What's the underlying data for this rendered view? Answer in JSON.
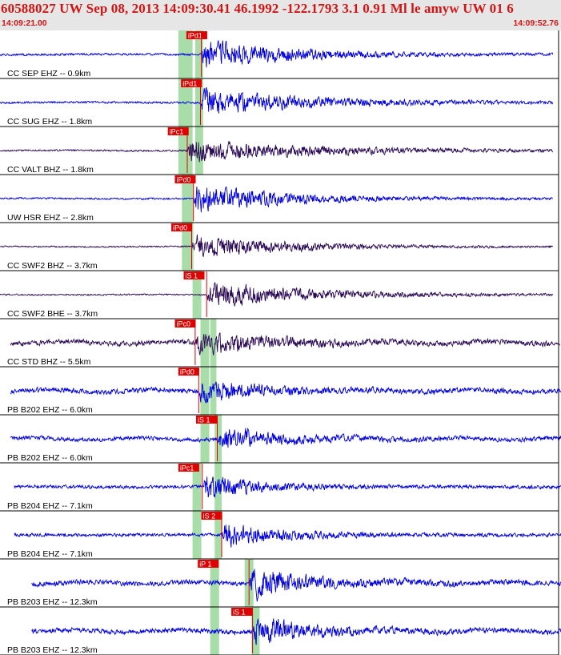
{
  "header": {
    "title": "60588027 UW Sep 08, 2013 14:09:30.41   46.1992 -122.1793  3.1 0.91 Ml le amyw UW 01    6",
    "start_time": "14:09:21.00",
    "end_time": "14:09:52.76"
  },
  "colors": {
    "header_bg": "#e6e6e6",
    "header_text": "#d21414",
    "trace_blue": "#0000e0",
    "trace_dark": "#2a0a55",
    "pick_red": "#e00000",
    "window_green": "#a8dca8",
    "divider": "#000000"
  },
  "chart_data": {
    "type": "line",
    "x_unit": "seconds",
    "x_range": [
      0,
      31.76
    ],
    "traces": [
      {
        "label": "CC SEP EHZ -- 0.9km",
        "color": "blue",
        "pick": "iPd1",
        "pick_time": 10.55,
        "onset": 11.4,
        "trace_start": 0.0,
        "trace_end": 31.3,
        "windows": [
          [
            10.1,
            10.9
          ],
          [
            11.05,
            11.5
          ]
        ],
        "noise": 0.06,
        "peak": 0.78,
        "decay": 5,
        "seed": 1
      },
      {
        "label": "CC SUG EHZ -- 1.8km",
        "color": "blue",
        "pick": "iPd1",
        "pick_time": 10.25,
        "onset": 11.35,
        "trace_start": 0.0,
        "trace_end": 31.3,
        "windows": [
          [
            10.1,
            10.9
          ],
          [
            11.05,
            11.5
          ]
        ],
        "noise": 0.06,
        "peak": 0.72,
        "decay": 6,
        "seed": 2
      },
      {
        "label": "CC VALT BHZ -- 1.8km",
        "color": "dark",
        "pick": "iPc1",
        "pick_time": 9.5,
        "onset": 10.6,
        "trace_start": 0.0,
        "trace_end": 31.3,
        "windows": [
          [
            10.1,
            10.9
          ],
          [
            11.05,
            11.5
          ]
        ],
        "noise": 0.05,
        "peak": 0.62,
        "decay": 7,
        "seed": 3
      },
      {
        "label": "UW HSR EHZ -- 2.8km",
        "color": "blue",
        "pick": "iPd0",
        "pick_time": 9.9,
        "onset": 10.95,
        "trace_start": 0.0,
        "trace_end": 31.3,
        "windows": [
          [
            10.3,
            10.95
          ]
        ],
        "noise": 0.05,
        "peak": 0.75,
        "decay": 5,
        "seed": 4
      },
      {
        "label": "CC SWF2 BHZ -- 3.7km",
        "color": "dark",
        "pick": "iPd0",
        "pick_time": 9.7,
        "onset": 10.85,
        "trace_start": 0.0,
        "trace_end": 31.3,
        "windows": [
          [
            10.3,
            10.95
          ]
        ],
        "noise": 0.04,
        "peak": 0.65,
        "decay": 5,
        "seed": 5
      },
      {
        "label": "CC SWF2 BHE -- 3.7km",
        "color": "dark",
        "pick": "iS 1",
        "pick_time": 10.4,
        "onset": 11.7,
        "trace_start": 0.0,
        "trace_end": 31.3,
        "windows": [
          [
            10.9,
            11.4
          ]
        ],
        "noise": 0.04,
        "peak": 0.7,
        "decay": 6,
        "seed": 6
      },
      {
        "label": "CC STD BHZ -- 5.5km",
        "color": "dark",
        "pick": "iPc0",
        "pick_time": 9.9,
        "onset": 11.05,
        "trace_start": 0.6,
        "trace_end": 31.7,
        "windows": [
          [
            11.35,
            11.85
          ],
          [
            11.9,
            12.25
          ]
        ],
        "noise": 0.14,
        "peak": 0.55,
        "decay": 4,
        "seed": 7
      },
      {
        "label": "PB B202 EHZ -- 6.0km",
        "color": "blue",
        "pick": "iPd0",
        "pick_time": 10.1,
        "onset": 11.25,
        "trace_start": 0.6,
        "trace_end": 31.8,
        "windows": [
          [
            11.35,
            11.85
          ],
          [
            11.9,
            12.25
          ]
        ],
        "noise": 0.14,
        "peak": 0.6,
        "decay": 3,
        "seed": 8
      },
      {
        "label": "PB B202 EHZ -- 6.0km",
        "color": "blue",
        "pick": "iS 1",
        "pick_time": 11.1,
        "onset": 12.3,
        "trace_start": 0.6,
        "trace_end": 31.8,
        "windows": [
          [
            11.35,
            11.85
          ],
          [
            12.15,
            12.55
          ]
        ],
        "noise": 0.12,
        "peak": 0.6,
        "decay": 3,
        "seed": 9
      },
      {
        "label": "PB B204 EHZ -- 7.1km",
        "color": "blue",
        "pick": "iPc1",
        "pick_time": 10.1,
        "onset": 11.45,
        "trace_start": 0.8,
        "trace_end": 31.9,
        "windows": [
          [
            10.9,
            11.4
          ],
          [
            12.15,
            12.55
          ]
        ],
        "noise": 0.09,
        "peak": 0.65,
        "decay": 3,
        "seed": 10
      },
      {
        "label": "PB B204 EHZ -- 7.1km",
        "color": "blue",
        "pick": "iS 2",
        "pick_time": 11.4,
        "onset": 12.55,
        "trace_start": 0.8,
        "trace_end": 31.9,
        "windows": [
          [
            10.9,
            11.4
          ],
          [
            12.15,
            12.55
          ]
        ],
        "noise": 0.09,
        "peak": 0.65,
        "decay": 3,
        "seed": 11
      },
      {
        "label": "PB B203 EHZ -- 12.3km",
        "color": "blue",
        "pick": "iP 1",
        "pick_time": 11.2,
        "onset": 14.1,
        "trace_start": 1.8,
        "trace_end": 31.76,
        "windows": [
          [
            11.9,
            12.4
          ],
          [
            13.85,
            14.35
          ]
        ],
        "noise": 0.14,
        "peak": 0.8,
        "decay": 3,
        "seed": 12
      },
      {
        "label": "PB B203 EHZ -- 12.3km",
        "color": "blue",
        "pick": "iS 1",
        "pick_time": 13.1,
        "onset": 14.3,
        "trace_start": 1.8,
        "trace_end": 31.76,
        "windows": [
          [
            11.9,
            12.4
          ],
          [
            14.25,
            14.7
          ]
        ],
        "noise": 0.14,
        "peak": 0.75,
        "decay": 3,
        "seed": 13
      }
    ]
  }
}
